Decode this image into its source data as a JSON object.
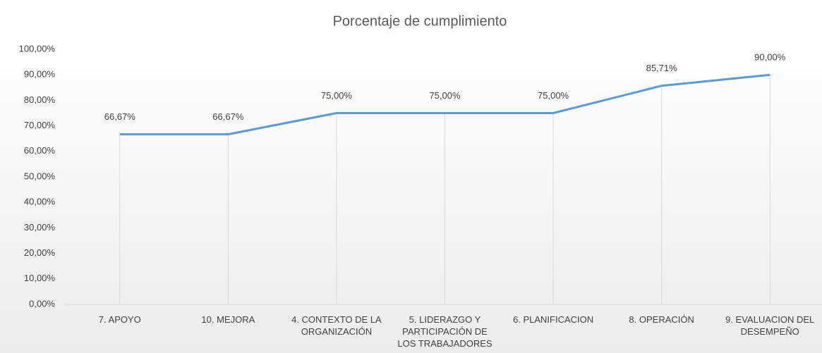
{
  "chart_data": {
    "type": "line",
    "title": "Porcentaje de cumplimiento",
    "categories": [
      "7. APOYO",
      "10. MEJORA",
      "4. CONTEXTO DE LA ORGANIZACIÓN",
      "5. LIDERAZGO Y PARTICIPACIÓN DE LOS TRABAJADORES",
      "6. PLANIFICACION",
      "8. OPERACIÓN",
      "9. EVALUACION DEL DESEMPEÑO"
    ],
    "series": [
      {
        "name": "Porcentaje de cumplimiento",
        "color": "#5b9bd5",
        "values": [
          66.67,
          66.67,
          75,
          75,
          75,
          85.71,
          90
        ],
        "value_labels": [
          "66,67%",
          "66,67%",
          "75,00%",
          "75,00%",
          "75,00%",
          "85,71%",
          "90,00%"
        ]
      }
    ],
    "ylim": [
      0,
      100
    ],
    "yticks": [
      {
        "value": 0,
        "label": "0,00%"
      },
      {
        "value": 10,
        "label": "10,00%"
      },
      {
        "value": 20,
        "label": "20,00%"
      },
      {
        "value": 30,
        "label": "30,00%"
      },
      {
        "value": 40,
        "label": "40,00%"
      },
      {
        "value": 50,
        "label": "50,00%"
      },
      {
        "value": 60,
        "label": "60,00%"
      },
      {
        "value": 70,
        "label": "70,00%"
      },
      {
        "value": 80,
        "label": "80,00%"
      },
      {
        "value": 90,
        "label": "90,00%"
      },
      {
        "value": 100,
        "label": "100,00%"
      }
    ],
    "drop_lines": true
  }
}
